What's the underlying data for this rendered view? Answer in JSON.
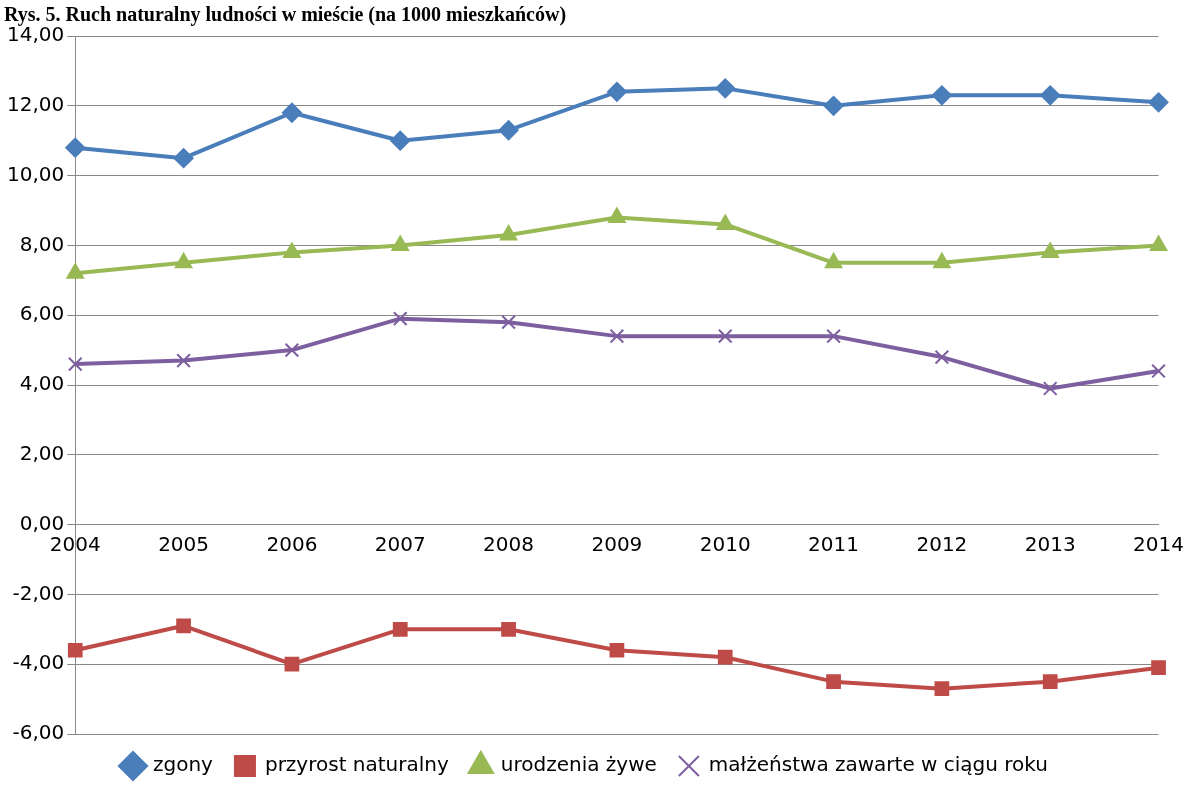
{
  "chart_data": {
    "type": "line",
    "title": "Rys. 5. Ruch naturalny ludności w mieście (na 1000 mieszkańców)",
    "categories": [
      "2004",
      "2005",
      "2006",
      "2007",
      "2008",
      "2009",
      "2010",
      "2011",
      "2012",
      "2013",
      "2014"
    ],
    "series": [
      {
        "name": "zgony",
        "color": "#4a7ebb",
        "marker": "diamond",
        "values": [
          10.8,
          10.5,
          11.8,
          11.0,
          11.3,
          12.4,
          12.5,
          12.0,
          12.3,
          12.3,
          12.1
        ]
      },
      {
        "name": "przyrost naturalny",
        "color": "#be4b48",
        "marker": "square",
        "values": [
          -3.6,
          -2.9,
          -4.0,
          -3.0,
          -3.0,
          -3.6,
          -3.8,
          -4.5,
          -4.7,
          -4.5,
          -4.1
        ]
      },
      {
        "name": "urodzenia żywe",
        "color": "#98b954",
        "marker": "triangle",
        "values": [
          7.2,
          7.5,
          7.8,
          8.0,
          8.3,
          8.8,
          8.6,
          7.5,
          7.5,
          7.8,
          8.0
        ]
      },
      {
        "name": "małżeństwa zawarte w ciągu roku",
        "color": "#7d5fa0",
        "marker": "cross",
        "values": [
          4.6,
          4.7,
          5.0,
          5.9,
          5.8,
          5.4,
          5.4,
          5.4,
          4.8,
          3.9,
          4.4
        ]
      }
    ],
    "ylim": [
      -6,
      14
    ],
    "yticks": [
      {
        "value": -6,
        "label": "-6,00"
      },
      {
        "value": -4,
        "label": "-4,00"
      },
      {
        "value": -2,
        "label": "-2,00"
      },
      {
        "value": 0,
        "label": "0,00"
      },
      {
        "value": 2,
        "label": "2,00"
      },
      {
        "value": 4,
        "label": "4,00"
      },
      {
        "value": 6,
        "label": "6,00"
      },
      {
        "value": 8,
        "label": "8,00"
      },
      {
        "value": 10,
        "label": "10,00"
      },
      {
        "value": 12,
        "label": "12,00"
      },
      {
        "value": 14,
        "label": "14,00"
      }
    ],
    "grid": "y",
    "legend": "bottom",
    "line_style": "solid"
  }
}
